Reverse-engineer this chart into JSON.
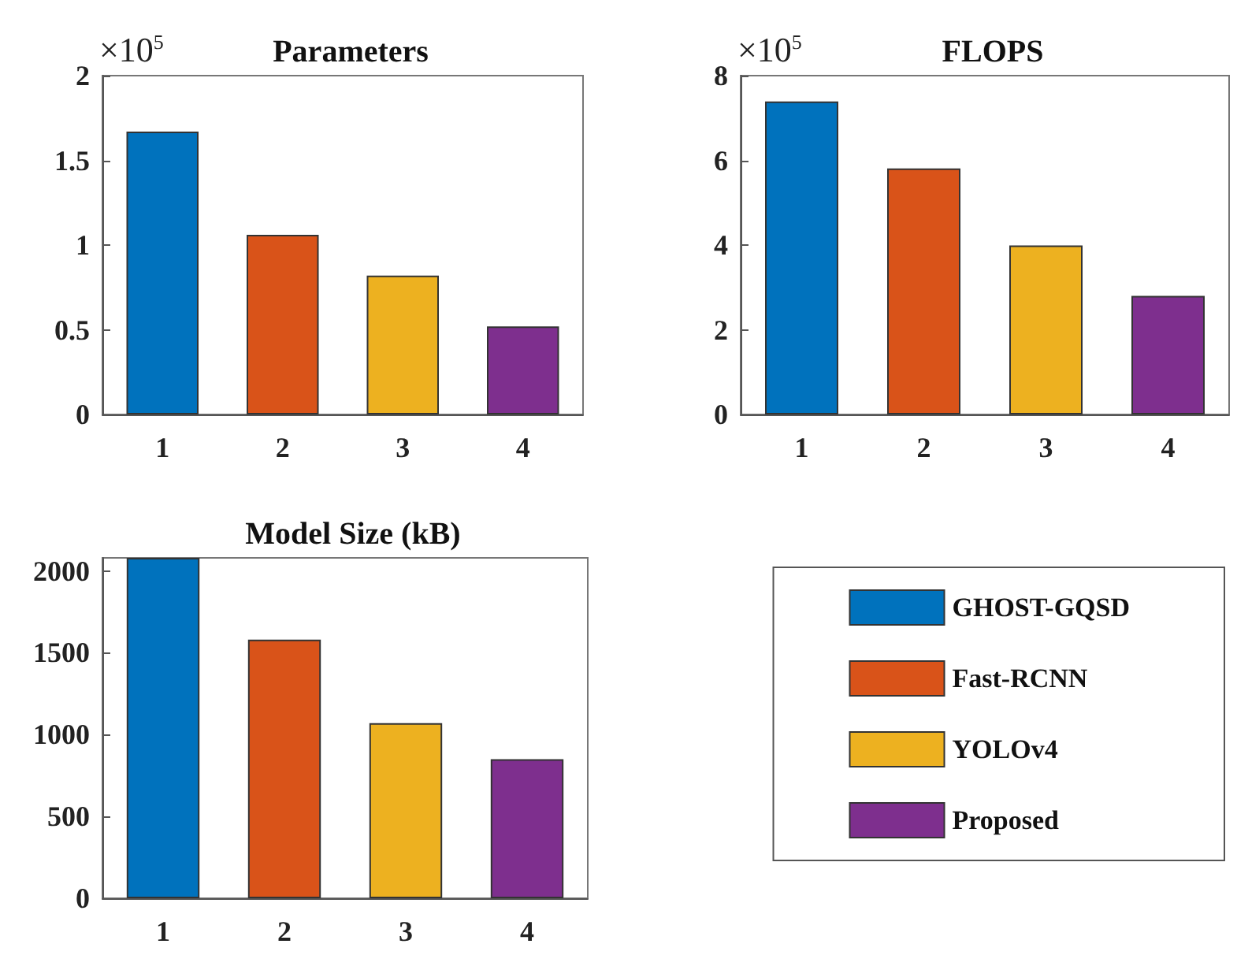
{
  "chart_data": [
    {
      "type": "bar",
      "title": "Parameters",
      "categories": [
        "1",
        "2",
        "3",
        "4"
      ],
      "stacked": true,
      "series": [
        {
          "color": "#0072bd",
          "values": [
            1.67,
            null,
            null,
            null
          ]
        },
        {
          "color": "#d95319",
          "values": [
            null,
            1.06,
            null,
            null
          ]
        },
        {
          "color": "#edb120",
          "values": [
            null,
            null,
            0.82,
            null
          ]
        },
        {
          "color": "#7e2f8e",
          "values": [
            null,
            null,
            null,
            0.52
          ]
        }
      ],
      "ylim": [
        0,
        2
      ],
      "yticks": [
        0,
        0.5,
        1,
        1.5,
        2
      ],
      "annotations": [
        "×10$^{5}$"
      ]
    },
    {
      "type": "bar",
      "title": "FLOPS",
      "categories": [
        "1",
        "2",
        "3",
        "4"
      ],
      "stacked": true,
      "series": [
        {
          "color": "#0072bd",
          "values": [
            7.39,
            null,
            null,
            null
          ]
        },
        {
          "color": "#d95319",
          "values": [
            null,
            5.81,
            null,
            null
          ]
        },
        {
          "color": "#edb120",
          "values": [
            null,
            null,
            3.99,
            null
          ]
        },
        {
          "color": "#7e2f8e",
          "values": [
            null,
            null,
            null,
            2.8
          ]
        }
      ],
      "ylim": [
        0,
        8
      ],
      "yticks": [
        0,
        2,
        4,
        6,
        8
      ],
      "annotations": [
        "×10$^{5}$"
      ]
    },
    {
      "type": "bar",
      "title": "Model Size (kB)",
      "categories": [
        "1",
        "2",
        "3",
        "4"
      ],
      "stacked": true,
      "legend": "right",
      "series": [
        {
          "name": "GHOST-GQSD",
          "color": "#0072bd",
          "values": [
            2080,
            null,
            null,
            null
          ]
        },
        {
          "name": "Fast-RCNN",
          "color": "#d95319",
          "values": [
            null,
            1580,
            null,
            null
          ]
        },
        {
          "name": "YOLOv4",
          "color": "#edb120",
          "values": [
            null,
            null,
            1070,
            null
          ]
        },
        {
          "name": "Proposed",
          "color": "#7e2f8e",
          "values": [
            null,
            null,
            null,
            850
          ]
        }
      ],
      "ylim": [
        0,
        2080
      ],
      "yticks": [
        0,
        500,
        1000,
        1500,
        2000
      ]
    }
  ]
}
